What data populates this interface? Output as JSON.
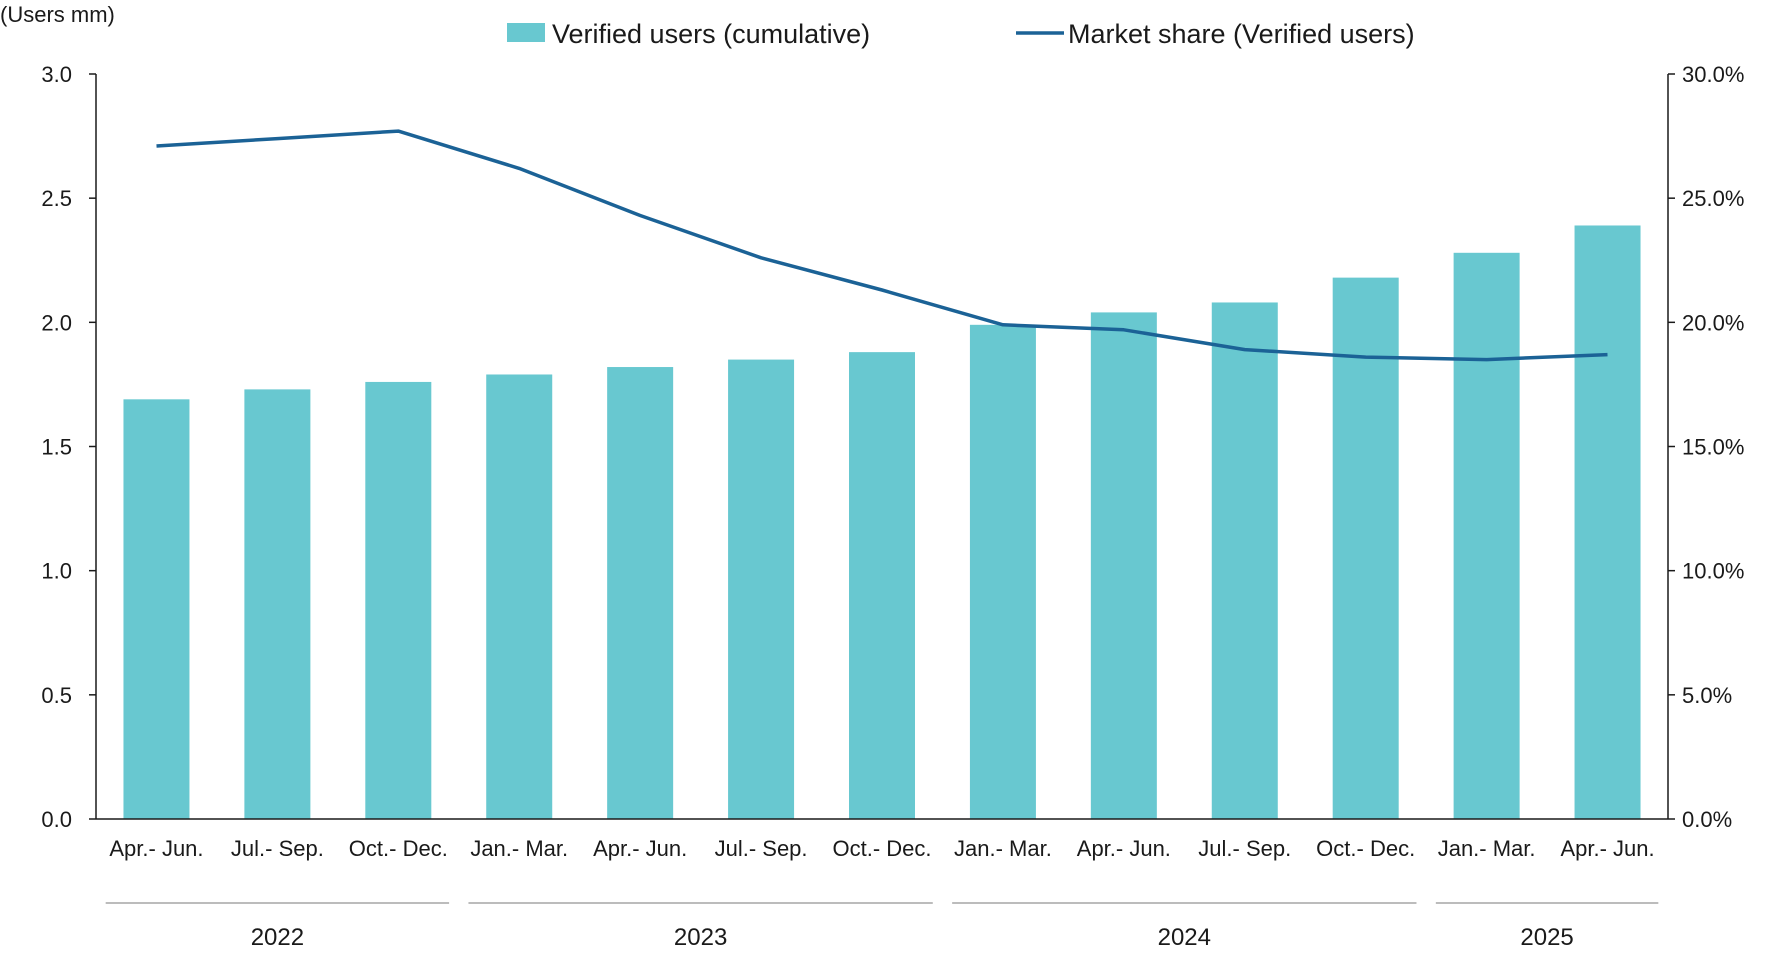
{
  "chart_data": {
    "type": "bar",
    "y_unit_label": "(Users mm)",
    "categories": [
      "Apr.- Jun.",
      "Jul.- Sep.",
      "Oct.- Dec.",
      "Jan.- Mar.",
      "Apr.- Jun.",
      "Jul.- Sep.",
      "Oct.- Dec.",
      "Jan.- Mar.",
      "Apr.- Jun.",
      "Jul.- Sep.",
      "Oct.- Dec.",
      "Jan.- Mar.",
      "Apr.- Jun."
    ],
    "year_groups": [
      {
        "label": "2022",
        "start": 0,
        "end": 2
      },
      {
        "label": "2023",
        "start": 3,
        "end": 6
      },
      {
        "label": "2024",
        "start": 7,
        "end": 10
      },
      {
        "label": "2025",
        "start": 11,
        "end": 12
      }
    ],
    "series": [
      {
        "name": "Verified users (cumulative)",
        "type": "bar",
        "axis": "left",
        "color": "#68C8D0",
        "values": [
          1.69,
          1.73,
          1.76,
          1.79,
          1.82,
          1.85,
          1.88,
          1.99,
          2.04,
          2.08,
          2.18,
          2.28,
          2.39
        ]
      },
      {
        "name": "Market share (Verified users)",
        "type": "line",
        "axis": "right",
        "color": "#1B6296",
        "values": [
          27.1,
          27.4,
          27.7,
          26.2,
          24.3,
          22.6,
          21.3,
          19.9,
          19.7,
          18.9,
          18.6,
          18.5,
          18.7
        ]
      }
    ],
    "y_left": {
      "min": 0,
      "max": 3.0,
      "step": 0.5,
      "tick_labels": [
        "0.0",
        "0.5",
        "1.0",
        "1.5",
        "2.0",
        "2.5",
        "3.0"
      ]
    },
    "y_right": {
      "min": 0,
      "max": 30,
      "step": 5,
      "tick_labels": [
        "0.0%",
        "5.0%",
        "10.0%",
        "15.0%",
        "20.0%",
        "25.0%",
        "30.0%"
      ]
    },
    "grid": false,
    "legend_position": "top-center"
  }
}
